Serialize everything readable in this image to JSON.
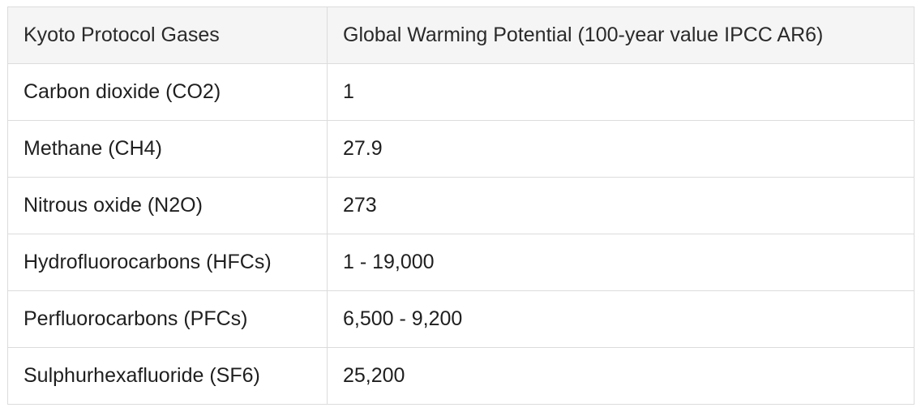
{
  "table": {
    "headers": [
      "Kyoto Protocol Gases",
      "Global Warming Potential (100-year value IPCC AR6)"
    ],
    "rows": [
      [
        "Carbon dioxide (CO2)",
        "1"
      ],
      [
        "Methane (CH4)",
        "27.9"
      ],
      [
        "Nitrous oxide (N2O)",
        "273"
      ],
      [
        "Hydrofluorocarbons (HFCs)",
        "1 - 19,000"
      ],
      [
        "Perfluorocarbons (PFCs)",
        "6,500 - 9,200"
      ],
      [
        "Sulphurhexafluoride (SF6)",
        "25,200"
      ]
    ]
  },
  "colors": {
    "header_background": "#f5f5f5",
    "border": "#dcdcdc",
    "text": "#1f1f1f"
  }
}
